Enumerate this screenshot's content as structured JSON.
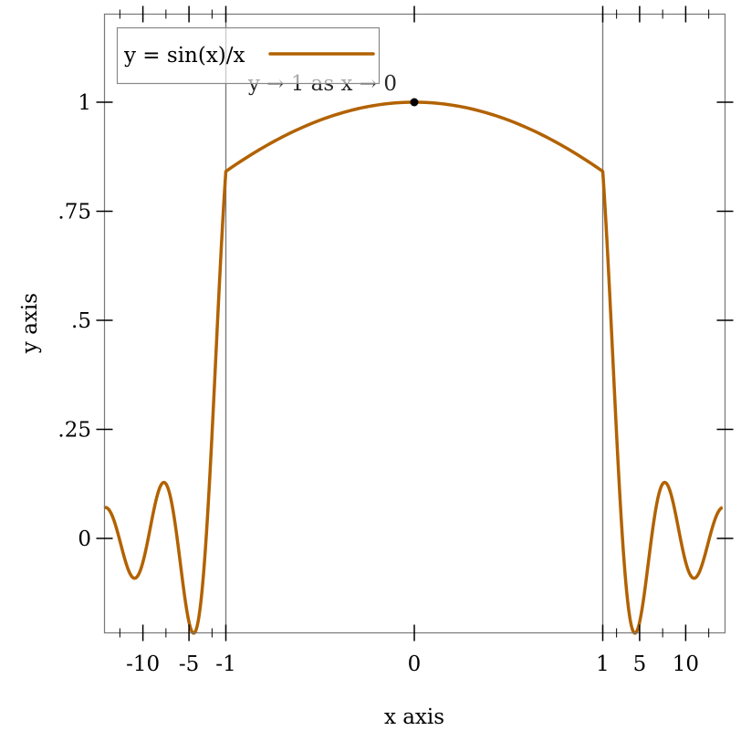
{
  "chart_data": {
    "type": "line",
    "title": "",
    "xlabel": "x axis",
    "ylabel": "y axis",
    "xlim": [
      -14.2,
      14
    ],
    "ylim": [
      -0.217,
      1.2
    ],
    "x_transform": "stretched region [-1, 1] (about 20x), outer regions compressed",
    "x_ticks": [
      {
        "value": -10,
        "label": "-10"
      },
      {
        "value": -5,
        "label": "-5"
      },
      {
        "value": -1,
        "label": "-1"
      },
      {
        "value": 0,
        "label": "0"
      },
      {
        "value": 1,
        "label": "1"
      },
      {
        "value": 5,
        "label": "5"
      },
      {
        "value": 10,
        "label": "10"
      }
    ],
    "x_minor_ticks": [
      -12.5,
      -7.5,
      -2.5,
      2.5,
      7.5,
      12.5
    ],
    "y_ticks": [
      {
        "value": 0,
        "label": "0"
      },
      {
        "value": 0.25,
        "label": ".25"
      },
      {
        "value": 0.5,
        "label": ".5"
      },
      {
        "value": 0.75,
        "label": ".75"
      },
      {
        "value": 1,
        "label": "1"
      }
    ],
    "vertical_lines": [
      -1,
      1
    ],
    "series": [
      {
        "name": "y = sin(x)/x",
        "function": "sin(x)/x",
        "color": "#b26200"
      }
    ],
    "point_label": {
      "x": 0,
      "y": 1,
      "text": "y → 1 as x → 0"
    },
    "legend": {
      "placement": "top-left",
      "entries": [
        "y = sin(x)/x"
      ]
    },
    "grid": false
  }
}
